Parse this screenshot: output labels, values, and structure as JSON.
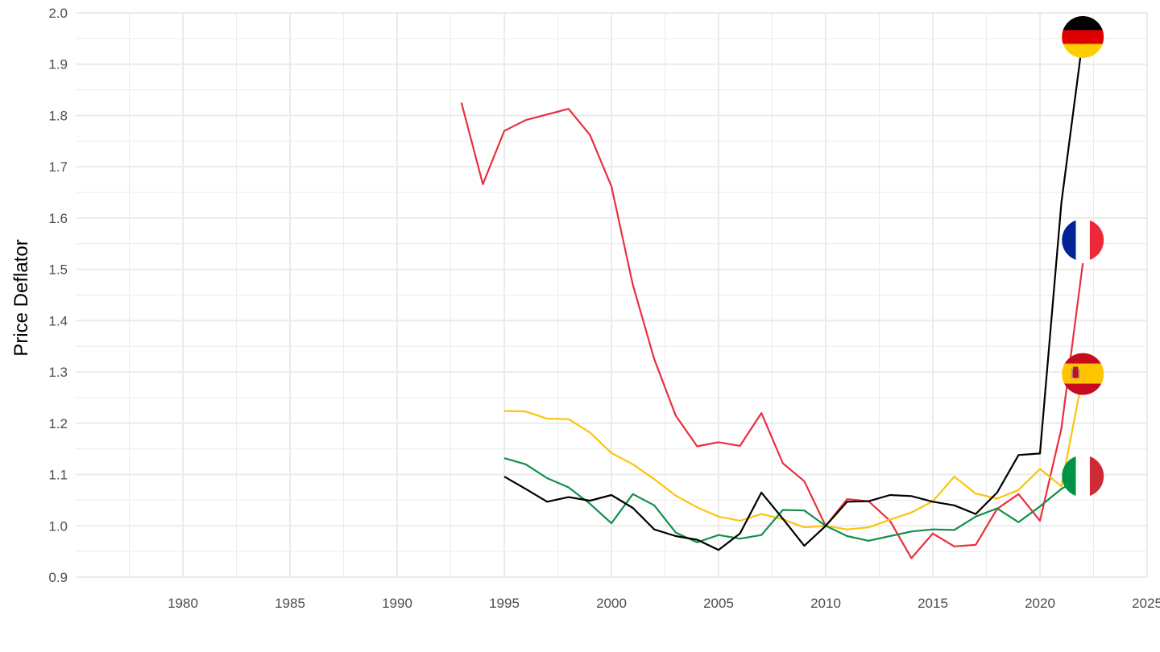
{
  "chart_data": {
    "type": "line",
    "xlabel": "",
    "ylabel": "Price Deflator",
    "xlim": [
      1975,
      2025
    ],
    "ylim": [
      0.9,
      2.0
    ],
    "x_ticks": [
      1980,
      1985,
      1990,
      1995,
      2000,
      2005,
      2010,
      2015,
      2020,
      2025
    ],
    "y_ticks": [
      0.9,
      1.0,
      1.1,
      1.2,
      1.3,
      1.4,
      1.5,
      1.6,
      1.7,
      1.8,
      1.9,
      2.0
    ],
    "grid": true,
    "legend": "flag markers at series ends",
    "series": [
      {
        "color": "#e8303f",
        "flag": "france",
        "x": [
          1993,
          1994,
          1995,
          1996,
          1997,
          1998,
          1999,
          2000,
          2001,
          2002,
          2003,
          2004,
          2005,
          2006,
          2007,
          2008,
          2009,
          2010,
          2011,
          2012,
          2013,
          2014,
          2015,
          2016,
          2017,
          2018,
          2019,
          2020,
          2021,
          2022
        ],
        "y": [
          1.825,
          1.666,
          1.77,
          1.791,
          1.802,
          1.813,
          1.762,
          1.662,
          1.47,
          1.325,
          1.215,
          1.155,
          1.163,
          1.156,
          1.22,
          1.122,
          1.087,
          1.0,
          1.052,
          1.048,
          1.01,
          0.937,
          0.985,
          0.96,
          0.963,
          1.033,
          1.062,
          1.01,
          1.19,
          1.512
        ]
      },
      {
        "color": "#000000",
        "flag": "germany",
        "x": [
          1995,
          1996,
          1997,
          1998,
          1999,
          2000,
          2001,
          2002,
          2003,
          2004,
          2005,
          2006,
          2007,
          2008,
          2009,
          2010,
          2011,
          2012,
          2013,
          2014,
          2015,
          2016,
          2017,
          2018,
          2019,
          2020,
          2021,
          2022
        ],
        "y": [
          1.096,
          1.072,
          1.047,
          1.056,
          1.049,
          1.06,
          1.035,
          0.993,
          0.98,
          0.973,
          0.953,
          0.985,
          1.065,
          1.014,
          0.961,
          1.0,
          1.047,
          1.048,
          1.06,
          1.058,
          1.047,
          1.04,
          1.023,
          1.065,
          1.138,
          1.141,
          1.63,
          1.95
        ]
      },
      {
        "color": "#fbc40e",
        "flag": "spain",
        "x": [
          1995,
          1996,
          1997,
          1998,
          1999,
          2000,
          2001,
          2002,
          2003,
          2004,
          2005,
          2006,
          2007,
          2008,
          2009,
          2010,
          2011,
          2012,
          2013,
          2014,
          2015,
          2016,
          2017,
          2018,
          2019,
          2020,
          2021,
          2022
        ],
        "y": [
          1.224,
          1.223,
          1.209,
          1.208,
          1.182,
          1.142,
          1.12,
          1.091,
          1.059,
          1.036,
          1.018,
          1.01,
          1.023,
          1.013,
          0.997,
          1.0,
          0.993,
          0.997,
          1.012,
          1.026,
          1.048,
          1.096,
          1.063,
          1.053,
          1.07,
          1.111,
          1.077,
          1.293
        ]
      },
      {
        "color": "#138f4a",
        "flag": "italy",
        "x": [
          1995,
          1996,
          1997,
          1998,
          1999,
          2000,
          2001,
          2002,
          2003,
          2004,
          2005,
          2006,
          2007,
          2008,
          2009,
          2010,
          2011,
          2012,
          2013,
          2014,
          2015,
          2016,
          2017,
          2018,
          2019,
          2020,
          2021,
          2022
        ],
        "y": [
          1.132,
          1.12,
          1.093,
          1.075,
          1.043,
          1.005,
          1.062,
          1.04,
          0.987,
          0.968,
          0.982,
          0.975,
          0.982,
          1.031,
          1.03,
          1.0,
          0.98,
          0.971,
          0.98,
          0.989,
          0.993,
          0.992,
          1.018,
          1.034,
          1.007,
          1.038,
          1.072,
          1.095
        ]
      }
    ],
    "flag_markers": [
      {
        "flag": "germany",
        "x": 2022,
        "y": 1.953
      },
      {
        "flag": "france",
        "x": 2022,
        "y": 1.557
      },
      {
        "flag": "spain",
        "x": 2022,
        "y": 1.296
      },
      {
        "flag": "italy",
        "x": 2022,
        "y": 1.097
      }
    ]
  }
}
